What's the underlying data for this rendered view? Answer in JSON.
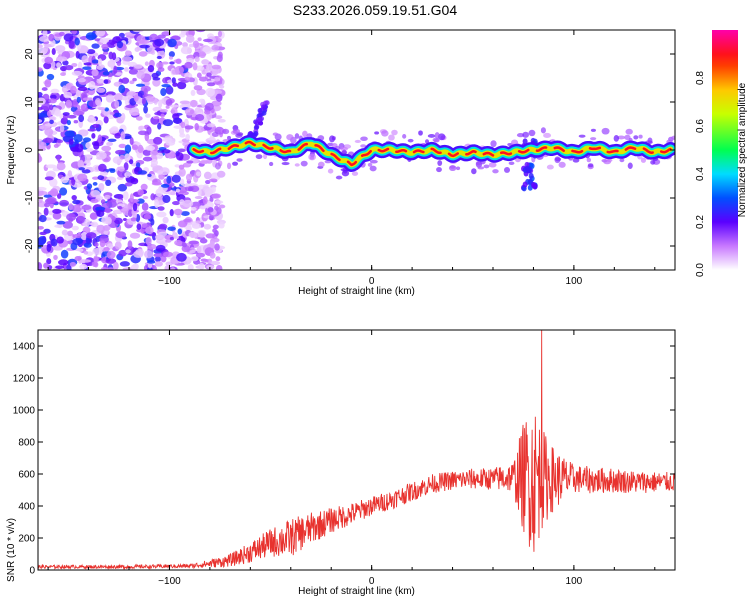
{
  "title": "S233.2026.059.19.51.G04",
  "chart_data": [
    {
      "type": "heatmap",
      "xlabel": "Height of straight line (km)",
      "ylabel": "Frequency (Hz)",
      "xlim": [
        -165,
        150
      ],
      "ylim": [
        -25,
        25
      ],
      "x_ticks": [
        -100,
        0,
        100
      ],
      "y_ticks": [
        -20,
        -10,
        0,
        10,
        20
      ],
      "colorbar": {
        "label": "Normalized spectral amplitude",
        "range": [
          0,
          1
        ],
        "ticks": [
          "0.0",
          "0.2",
          "0.4",
          "0.6",
          "0.8"
        ],
        "tick_values": [
          0,
          0.2,
          0.4,
          0.6,
          0.8
        ]
      },
      "ridge": {
        "x": [
          -88,
          -80,
          -70,
          -60,
          -50,
          -40,
          -30,
          -20,
          -10,
          0,
          10,
          20,
          30,
          40,
          50,
          60,
          70,
          80,
          90,
          100,
          110,
          120,
          130,
          140,
          148
        ],
        "freq": [
          0,
          -0.5,
          0.5,
          1.5,
          0.5,
          -0.5,
          1.5,
          -1,
          -3,
          0,
          0,
          -0.5,
          0,
          -1,
          -0.5,
          -1,
          -0.5,
          0,
          0.5,
          -0.5,
          0.5,
          -0.5,
          0.5,
          -0.5,
          0
        ]
      },
      "noise_region_x": [
        -165,
        -80
      ]
    },
    {
      "type": "line",
      "xlabel": "Height of straight line (km)",
      "ylabel": "SNR (10 * v/v)",
      "xlim": [
        -165,
        150
      ],
      "ylim": [
        0,
        1500
      ],
      "x_ticks": [
        -100,
        0,
        100
      ],
      "y_ticks": [
        0,
        200,
        400,
        600,
        800,
        1000,
        1200,
        1400
      ],
      "series_color": "#e8322e",
      "trend": {
        "x": [
          -165,
          -120,
          -90,
          -80,
          -70,
          -60,
          -50,
          -40,
          -30,
          -20,
          -10,
          0,
          10,
          20,
          30,
          40,
          50,
          60,
          70,
          80,
          90,
          100,
          110,
          120,
          130,
          140,
          150
        ],
        "y": [
          20,
          20,
          25,
          40,
          60,
          110,
          170,
          200,
          260,
          310,
          350,
          400,
          440,
          490,
          540,
          560,
          570,
          570,
          580,
          580,
          570,
          570,
          560,
          560,
          550,
          550,
          550
        ]
      },
      "noise_amplitude": {
        "x": [
          -165,
          -90,
          -70,
          -50,
          -40,
          -20,
          0,
          20,
          40,
          60,
          70,
          75,
          80,
          85,
          90,
          100,
          150
        ],
        "y": [
          10,
          12,
          40,
          90,
          120,
          80,
          60,
          60,
          60,
          70,
          100,
          350,
          500,
          300,
          200,
          90,
          60
        ]
      },
      "peak": {
        "x": 84,
        "y": 1500
      }
    }
  ]
}
